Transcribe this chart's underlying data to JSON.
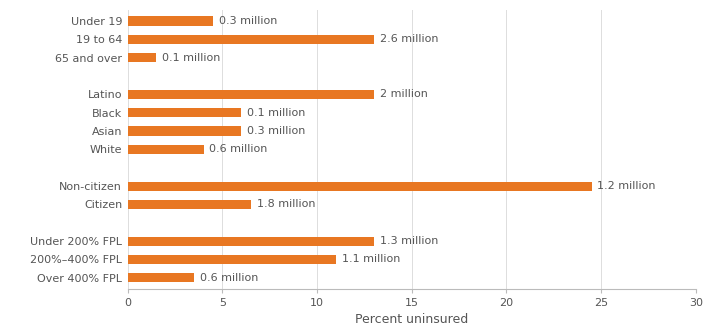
{
  "categories": [
    "Over 400% FPL",
    "200%–400% FPL",
    "Under 200% FPL",
    "",
    "Citizen",
    "Non-citizen",
    " ",
    "White",
    "Asian",
    "Black",
    "Latino",
    "  ",
    "65 and over",
    "19 to 64",
    "Under 19"
  ],
  "values": [
    3.5,
    11.0,
    13.0,
    0,
    6.5,
    24.5,
    0,
    4.0,
    6.0,
    6.0,
    13.0,
    0,
    1.5,
    13.0,
    4.5
  ],
  "labels": [
    "0.6 million",
    "1.1 million",
    "1.3 million",
    "",
    "1.8 million",
    "1.2 million",
    "",
    "0.6 million",
    "0.3 million",
    "0.1 million",
    "2 million",
    "",
    "0.1 million",
    "2.6 million",
    "0.3 million"
  ],
  "bar_color": "#E87722",
  "xlabel": "Percent uninsured",
  "xlim": [
    0,
    30
  ],
  "xticks": [
    0,
    5,
    10,
    15,
    20,
    25,
    30
  ],
  "bar_height": 0.5,
  "label_fontsize": 8,
  "tick_fontsize": 8,
  "xlabel_fontsize": 9,
  "fig_width": 7.1,
  "fig_height": 3.32,
  "dpi": 100
}
